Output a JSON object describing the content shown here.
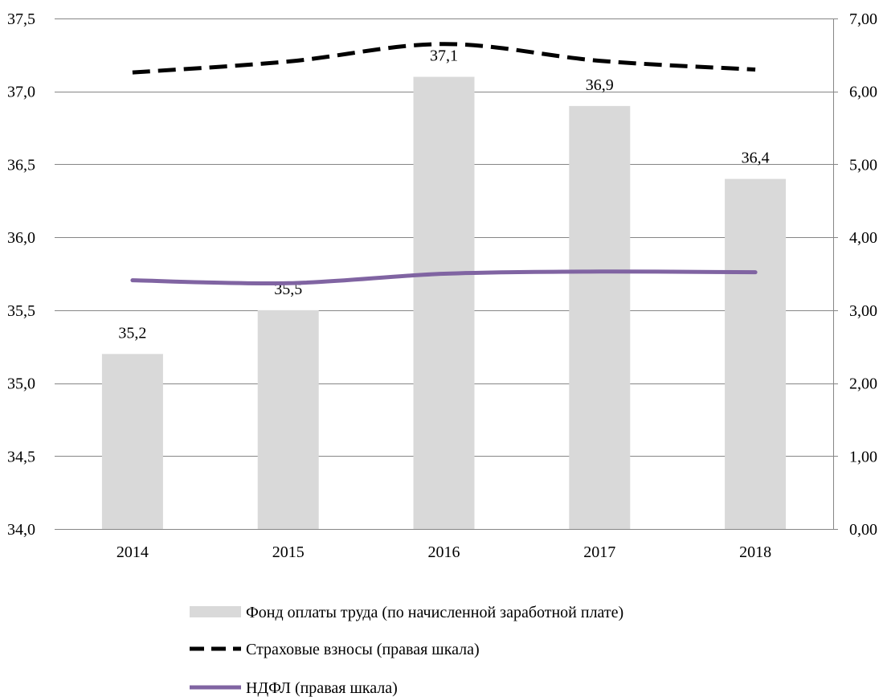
{
  "chart_data": {
    "type": "bar",
    "categories": [
      "2014",
      "2015",
      "2016",
      "2017",
      "2018"
    ],
    "series": [
      {
        "name": "Фонд оплаты труда (по начисленной заработной плате)",
        "type": "bar",
        "axis": "left",
        "color": "#d9d9d9",
        "values": [
          35.2,
          35.5,
          37.1,
          36.9,
          36.4
        ],
        "data_labels": [
          "35,2",
          "35,5",
          "37,1",
          "36,9",
          "36,4"
        ]
      },
      {
        "name": "Страховые взносы (правая шкала)",
        "type": "line",
        "axis": "right",
        "color": "#000000",
        "line_style": "dashed",
        "smooth": true,
        "values": [
          6.26,
          6.41,
          6.65,
          6.42,
          6.3
        ]
      },
      {
        "name": "НДФЛ (правая шкала)",
        "type": "line",
        "axis": "right",
        "color": "#8064a2",
        "line_style": "solid",
        "smooth": true,
        "values": [
          3.41,
          3.37,
          3.5,
          3.53,
          3.52
        ]
      }
    ],
    "y_left": {
      "ylim": [
        34.0,
        37.5
      ],
      "ticks": [
        {
          "value": 37.5,
          "label": "37,5"
        },
        {
          "value": 37.0,
          "label": "37,0"
        },
        {
          "value": 36.5,
          "label": "36,5"
        },
        {
          "value": 36.0,
          "label": "36,0"
        },
        {
          "value": 35.5,
          "label": "35,5"
        },
        {
          "value": 35.0,
          "label": "35,0"
        },
        {
          "value": 34.5,
          "label": "34,5"
        },
        {
          "value": 34.0,
          "label": "34,0"
        }
      ]
    },
    "y_right": {
      "ylim": [
        0,
        7
      ],
      "ticks": [
        {
          "value": 7,
          "label": "7,00"
        },
        {
          "value": 6,
          "label": "6,00"
        },
        {
          "value": 5,
          "label": "5,00"
        },
        {
          "value": 4,
          "label": "4,00"
        },
        {
          "value": 3,
          "label": "3,00"
        },
        {
          "value": 2,
          "label": "2,00"
        },
        {
          "value": 1,
          "label": "1,00"
        },
        {
          "value": 0,
          "label": "0,00"
        }
      ]
    },
    "grid": true,
    "grid_color": "#868686",
    "legend": "bottom"
  }
}
